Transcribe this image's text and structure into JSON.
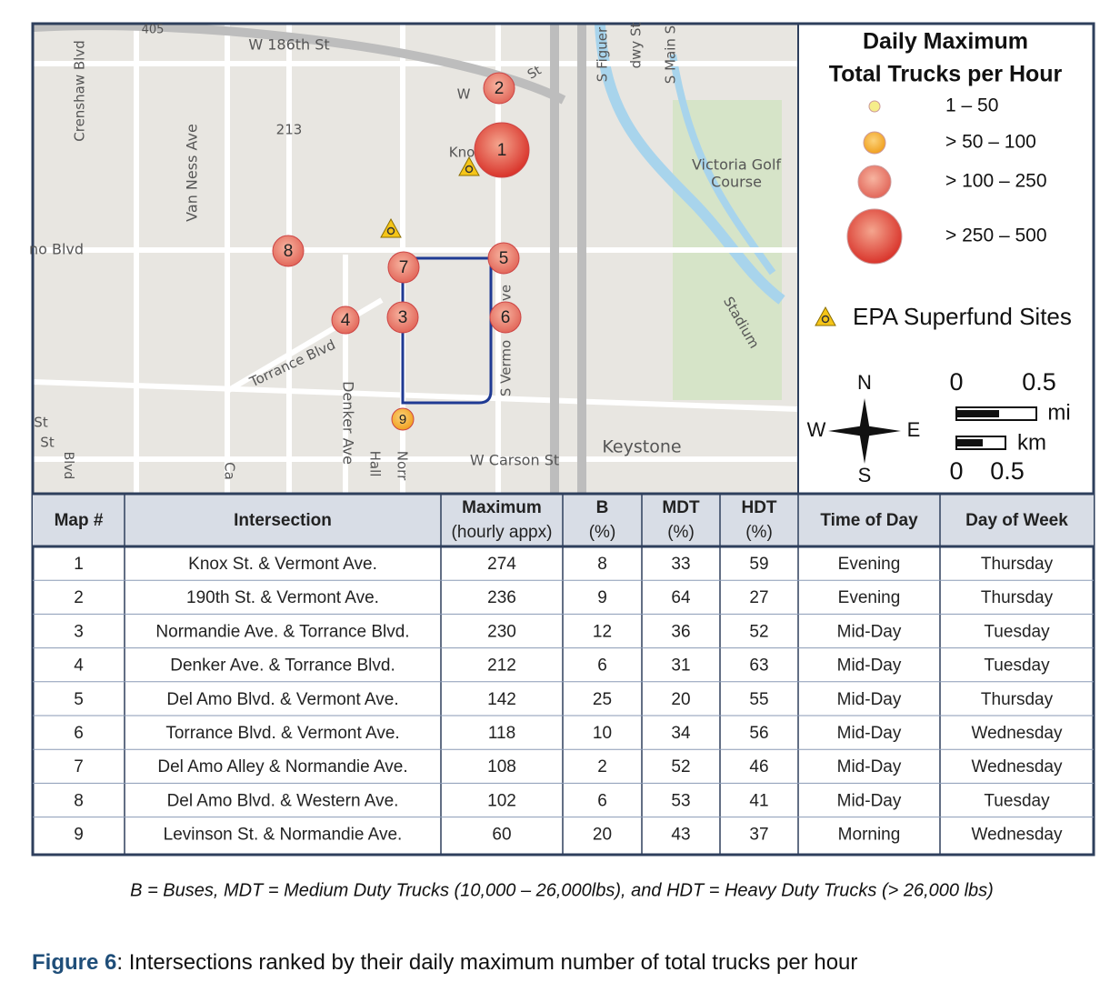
{
  "map": {
    "labels": [
      "405",
      "W 186th St",
      "213",
      "Crenshaw Blvd",
      "Van Ness Ave",
      "no Blvd",
      "Torrance Blvd",
      "Denker Ave",
      "Hall",
      "Norr",
      "Ca",
      "St",
      "St",
      "Blvd",
      "W",
      "St",
      "Kno",
      "S Figuer",
      "dwy St",
      "S Main S",
      "Victoria Golf",
      "Course",
      "Stadium",
      "S Vermo",
      "ve",
      "Keystone",
      "W Carson St"
    ],
    "markers": [
      "1",
      "2",
      "3",
      "4",
      "5",
      "6",
      "7",
      "8",
      "9"
    ]
  },
  "legend": {
    "title": [
      "Daily Maximum",
      "Total Trucks per Hour"
    ],
    "items": [
      "1 – 50",
      "> 50 – 100",
      "> 100 – 250",
      "> 250 – 500"
    ],
    "superfund": "EPA Superfund Sites",
    "compass": [
      "N",
      "W",
      "E",
      "S"
    ],
    "scale": [
      "0",
      "0.5",
      "mi",
      "km",
      "0",
      "0.5"
    ]
  },
  "table": {
    "header": [
      [
        "Map #"
      ],
      [
        "Intersection"
      ],
      [
        "Maximum",
        "(hourly appx)"
      ],
      [
        "B",
        "(%)"
      ],
      [
        "MDT",
        "(%)"
      ],
      [
        "HDT",
        "(%)"
      ],
      [
        "Time of Day"
      ],
      [
        "Day of Week"
      ]
    ],
    "rows": [
      [
        "1",
        "Knox St. & Vermont Ave.",
        "274",
        "8",
        "33",
        "59",
        "Evening",
        "Thursday"
      ],
      [
        "2",
        "190th St. & Vermont Ave.",
        "236",
        "9",
        "64",
        "27",
        "Evening",
        "Thursday"
      ],
      [
        "3",
        "Normandie Ave. & Torrance Blvd.",
        "230",
        "12",
        "36",
        "52",
        "Mid-Day",
        "Tuesday"
      ],
      [
        "4",
        "Denker Ave. & Torrance Blvd.",
        "212",
        "6",
        "31",
        "63",
        "Mid-Day",
        "Tuesday"
      ],
      [
        "5",
        "Del Amo Blvd. & Vermont Ave.",
        "142",
        "25",
        "20",
        "55",
        "Mid-Day",
        "Thursday"
      ],
      [
        "6",
        "Torrance Blvd. & Vermont Ave.",
        "118",
        "10",
        "34",
        "56",
        "Mid-Day",
        "Wednesday"
      ],
      [
        "7",
        "Del Amo Alley & Normandie Ave.",
        "108",
        "2",
        "52",
        "46",
        "Mid-Day",
        "Wednesday"
      ],
      [
        "8",
        "Del Amo Blvd. & Western Ave.",
        "102",
        "6",
        "53",
        "41",
        "Mid-Day",
        "Tuesday"
      ],
      [
        "9",
        "Levinson St. & Normandie Ave.",
        "60",
        "20",
        "43",
        "37",
        "Morning",
        "Wednesday"
      ]
    ]
  },
  "footnote": "B = Buses, MDT = Medium Duty Trucks (10,000 – 26,000lbs), and HDT = Heavy Duty Trucks (> 26,000 lbs)",
  "caption": {
    "label": "Figure 6",
    "text": ": Intersections ranked by their daily maximum number of total trucks per hour"
  }
}
